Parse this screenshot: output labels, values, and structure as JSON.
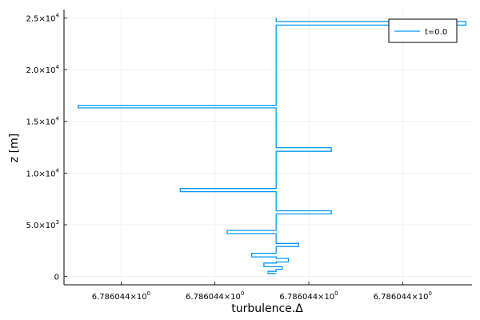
{
  "chart_data": {
    "type": "line",
    "title": "",
    "xlabel": "turbulence.Δ",
    "ylabel": "z [m]",
    "grid": true,
    "legend_position": "top-right",
    "xlim": [
      0,
      1
    ],
    "ylim": [
      -800,
      25800
    ],
    "x_ticks": [
      {
        "value": 0.14,
        "mantissa": "6.786044×10",
        "exp": "0"
      },
      {
        "value": 0.37,
        "mantissa": "6.786044×10",
        "exp": "0"
      },
      {
        "value": 0.6,
        "mantissa": "6.786044×10",
        "exp": "0"
      },
      {
        "value": 0.83,
        "mantissa": "6.786044×10",
        "exp": "0"
      }
    ],
    "y_ticks": [
      {
        "value": 0,
        "label": "0",
        "exp": ""
      },
      {
        "value": 5000,
        "label": "5.0×10",
        "exp": "3"
      },
      {
        "value": 10000,
        "label": "1.0×10",
        "exp": "4"
      },
      {
        "value": 15000,
        "label": "1.5×10",
        "exp": "4"
      },
      {
        "value": 20000,
        "label": "2.0×10",
        "exp": "4"
      },
      {
        "value": 25000,
        "label": "2.5×10",
        "exp": "4"
      }
    ],
    "series": [
      {
        "name": "t=0.0",
        "color": "#009AFA",
        "points": [
          [
            0.52,
            300
          ],
          [
            0.5,
            300
          ],
          [
            0.5,
            500
          ],
          [
            0.52,
            500
          ],
          [
            0.52,
            700
          ],
          [
            0.535,
            700
          ],
          [
            0.535,
            950
          ],
          [
            0.49,
            950
          ],
          [
            0.49,
            1300
          ],
          [
            0.52,
            1300
          ],
          [
            0.52,
            1400
          ],
          [
            0.55,
            1400
          ],
          [
            0.55,
            1750
          ],
          [
            0.52,
            1750
          ],
          [
            0.52,
            1900
          ],
          [
            0.46,
            1900
          ],
          [
            0.46,
            2250
          ],
          [
            0.52,
            2250
          ],
          [
            0.52,
            2900
          ],
          [
            0.575,
            2900
          ],
          [
            0.575,
            3200
          ],
          [
            0.52,
            3200
          ],
          [
            0.52,
            4150
          ],
          [
            0.4,
            4150
          ],
          [
            0.4,
            4450
          ],
          [
            0.52,
            4450
          ],
          [
            0.52,
            6050
          ],
          [
            0.655,
            6050
          ],
          [
            0.655,
            6350
          ],
          [
            0.52,
            6350
          ],
          [
            0.52,
            8200
          ],
          [
            0.285,
            8200
          ],
          [
            0.285,
            8500
          ],
          [
            0.52,
            8500
          ],
          [
            0.52,
            12100
          ],
          [
            0.655,
            12100
          ],
          [
            0.655,
            12450
          ],
          [
            0.52,
            12450
          ],
          [
            0.52,
            16300
          ],
          [
            0.035,
            16300
          ],
          [
            0.035,
            16550
          ],
          [
            0.52,
            16550
          ],
          [
            0.52,
            24300
          ],
          [
            0.985,
            24300
          ],
          [
            0.985,
            24650
          ],
          [
            0.52,
            24650
          ],
          [
            0.52,
            25000
          ]
        ]
      }
    ]
  }
}
